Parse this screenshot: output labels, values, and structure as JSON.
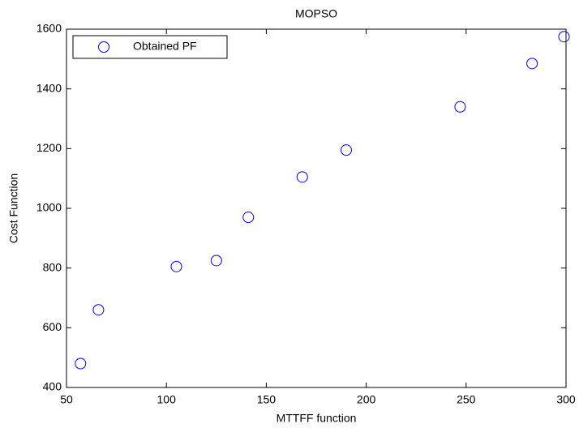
{
  "chart_data": {
    "type": "scatter",
    "title": "MOPSO",
    "xlabel": "MTTFF function",
    "ylabel": "Cost Function",
    "series": [
      {
        "name": "Obtained PF",
        "color": "#0000ff",
        "x": [
          57,
          66,
          105,
          125,
          141,
          168,
          190,
          247,
          283,
          299
        ],
        "values": [
          480,
          660,
          805,
          825,
          970,
          1105,
          1195,
          1340,
          1485,
          1575
        ]
      }
    ],
    "xlim": [
      50,
      300
    ],
    "xticks": [
      50,
      100,
      150,
      200,
      250,
      300
    ],
    "ylim": [
      400,
      1600
    ],
    "yticks": [
      400,
      600,
      800,
      1000,
      1200,
      1400,
      1600
    ],
    "grid": false,
    "legend": "upper-left"
  }
}
